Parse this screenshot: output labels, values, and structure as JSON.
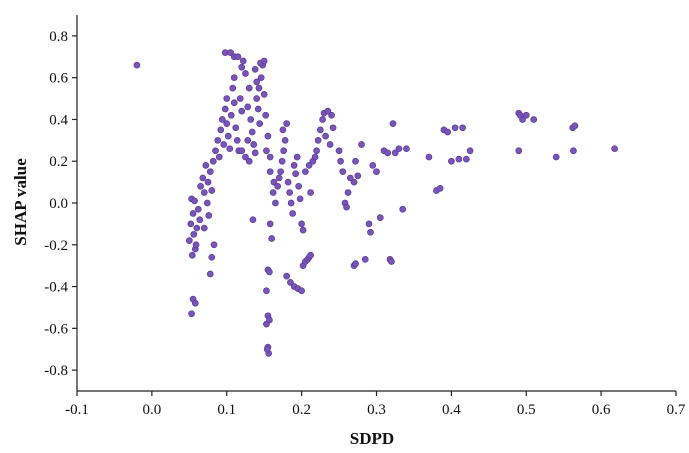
{
  "chart_data": {
    "type": "scatter",
    "title": "",
    "xlabel": "SDPD",
    "ylabel": "SHAP value",
    "xlim": [
      -0.1,
      0.7
    ],
    "ylim": [
      -0.9,
      0.9
    ],
    "grid": false,
    "legend": "none",
    "color": "#7a55b8",
    "xticks": [
      "-0.1",
      "0.0",
      "0.1",
      "0.2",
      "0.3",
      "0.4",
      "0.5",
      "0.6",
      "0.7"
    ],
    "yticks": [
      "0.8",
      "0.6",
      "0.4",
      "0.2",
      "0.0",
      "-0.2",
      "-0.4",
      "-0.6",
      "-0.8"
    ],
    "series": [
      {
        "name": "",
        "points": [
          [
            -0.02,
            0.66
          ],
          [
            0.053,
            0.02
          ],
          [
            0.055,
            -0.05
          ],
          [
            0.052,
            -0.1
          ],
          [
            0.056,
            -0.15
          ],
          [
            0.05,
            -0.18
          ],
          [
            0.058,
            -0.22
          ],
          [
            0.054,
            -0.25
          ],
          [
            0.06,
            -0.12
          ],
          [
            0.062,
            -0.03
          ],
          [
            0.057,
            0.01
          ],
          [
            0.064,
            -0.08
          ],
          [
            0.059,
            -0.2
          ],
          [
            0.055,
            -0.46
          ],
          [
            0.058,
            -0.48
          ],
          [
            0.053,
            -0.53
          ],
          [
            0.065,
            0.08
          ],
          [
            0.068,
            0.12
          ],
          [
            0.07,
            0.05
          ],
          [
            0.072,
            0.18
          ],
          [
            0.074,
            0.0
          ],
          [
            0.075,
            0.1
          ],
          [
            0.078,
            0.15
          ],
          [
            0.08,
            0.06
          ],
          [
            0.082,
            0.2
          ],
          [
            0.076,
            -0.06
          ],
          [
            0.085,
            0.25
          ],
          [
            0.07,
            -0.12
          ],
          [
            0.078,
            -0.34
          ],
          [
            0.08,
            -0.26
          ],
          [
            0.083,
            -0.2
          ],
          [
            0.088,
            0.3
          ],
          [
            0.09,
            0.22
          ],
          [
            0.092,
            0.35
          ],
          [
            0.094,
            0.4
          ],
          [
            0.096,
            0.28
          ],
          [
            0.098,
            0.45
          ],
          [
            0.1,
            0.5
          ],
          [
            0.1,
            0.38
          ],
          [
            0.102,
            0.32
          ],
          [
            0.104,
            0.26
          ],
          [
            0.106,
            0.42
          ],
          [
            0.108,
            0.55
          ],
          [
            0.11,
            0.6
          ],
          [
            0.11,
            0.48
          ],
          [
            0.112,
            0.36
          ],
          [
            0.114,
            0.3
          ],
          [
            0.116,
            0.25
          ],
          [
            0.118,
            0.5
          ],
          [
            0.12,
            0.65
          ],
          [
            0.12,
            0.44
          ],
          [
            0.098,
            0.72
          ],
          [
            0.105,
            0.72
          ],
          [
            0.11,
            0.7
          ],
          [
            0.115,
            0.7
          ],
          [
            0.122,
            0.68
          ],
          [
            0.125,
            0.62
          ],
          [
            0.13,
            0.55
          ],
          [
            0.128,
            0.46
          ],
          [
            0.132,
            0.4
          ],
          [
            0.134,
            0.34
          ],
          [
            0.136,
            0.28
          ],
          [
            0.138,
            0.24
          ],
          [
            0.14,
            0.5
          ],
          [
            0.142,
            0.45
          ],
          [
            0.144,
            0.38
          ],
          [
            0.146,
            0.6
          ],
          [
            0.148,
            0.66
          ],
          [
            0.15,
            0.52
          ],
          [
            0.152,
            0.42
          ],
          [
            0.155,
            0.32
          ],
          [
            0.153,
            0.25
          ],
          [
            0.158,
            0.22
          ],
          [
            0.12,
            0.25
          ],
          [
            0.125,
            0.22
          ],
          [
            0.128,
            0.3
          ],
          [
            0.13,
            0.2
          ],
          [
            0.135,
            -0.08
          ],
          [
            0.14,
            0.58
          ],
          [
            0.138,
            0.64
          ],
          [
            0.145,
            0.67
          ],
          [
            0.15,
            0.68
          ],
          [
            0.143,
            0.55
          ],
          [
            0.155,
            -0.32
          ],
          [
            0.157,
            -0.33
          ],
          [
            0.153,
            -0.42
          ],
          [
            0.155,
            -0.54
          ],
          [
            0.157,
            -0.56
          ],
          [
            0.153,
            -0.58
          ],
          [
            0.155,
            -0.69
          ],
          [
            0.156,
            -0.72
          ],
          [
            0.154,
            -0.7
          ],
          [
            0.158,
            -0.1
          ],
          [
            0.16,
            -0.17
          ],
          [
            0.162,
            0.05
          ],
          [
            0.165,
            0.0
          ],
          [
            0.158,
            0.15
          ],
          [
            0.163,
            0.1
          ],
          [
            0.168,
            0.08
          ],
          [
            0.17,
            0.12
          ],
          [
            0.172,
            0.15
          ],
          [
            0.174,
            0.2
          ],
          [
            0.176,
            0.25
          ],
          [
            0.178,
            0.3
          ],
          [
            0.175,
            0.35
          ],
          [
            0.18,
            0.38
          ],
          [
            0.182,
            0.1
          ],
          [
            0.184,
            0.05
          ],
          [
            0.186,
            0.0
          ],
          [
            0.188,
            -0.05
          ],
          [
            0.19,
            0.18
          ],
          [
            0.192,
            0.14
          ],
          [
            0.194,
            0.22
          ],
          [
            0.196,
            0.08
          ],
          [
            0.198,
            0.02
          ],
          [
            0.2,
            -0.1
          ],
          [
            0.202,
            -0.13
          ],
          [
            0.18,
            -0.35
          ],
          [
            0.185,
            -0.38
          ],
          [
            0.19,
            -0.4
          ],
          [
            0.195,
            -0.41
          ],
          [
            0.2,
            -0.42
          ],
          [
            0.202,
            -0.3
          ],
          [
            0.205,
            -0.28
          ],
          [
            0.208,
            -0.27
          ],
          [
            0.21,
            -0.26
          ],
          [
            0.212,
            -0.25
          ],
          [
            0.205,
            0.15
          ],
          [
            0.21,
            0.18
          ],
          [
            0.212,
            0.05
          ],
          [
            0.215,
            0.2
          ],
          [
            0.218,
            0.22
          ],
          [
            0.22,
            0.25
          ],
          [
            0.222,
            0.3
          ],
          [
            0.225,
            0.35
          ],
          [
            0.228,
            0.4
          ],
          [
            0.23,
            0.43
          ],
          [
            0.235,
            0.44
          ],
          [
            0.24,
            0.42
          ],
          [
            0.232,
            0.32
          ],
          [
            0.238,
            0.28
          ],
          [
            0.242,
            0.36
          ],
          [
            0.25,
            0.25
          ],
          [
            0.252,
            0.2
          ],
          [
            0.255,
            0.15
          ],
          [
            0.258,
            0.0
          ],
          [
            0.26,
            -0.02
          ],
          [
            0.262,
            0.05
          ],
          [
            0.265,
            0.12
          ],
          [
            0.27,
            0.1
          ],
          [
            0.272,
            0.2
          ],
          [
            0.275,
            0.13
          ],
          [
            0.27,
            -0.3
          ],
          [
            0.272,
            -0.29
          ],
          [
            0.28,
            0.28
          ],
          [
            0.285,
            -0.27
          ],
          [
            0.29,
            -0.1
          ],
          [
            0.292,
            -0.14
          ],
          [
            0.295,
            0.18
          ],
          [
            0.3,
            0.15
          ],
          [
            0.305,
            -0.07
          ],
          [
            0.31,
            0.25
          ],
          [
            0.315,
            0.24
          ],
          [
            0.318,
            -0.27
          ],
          [
            0.32,
            -0.28
          ],
          [
            0.322,
            0.38
          ],
          [
            0.325,
            0.24
          ],
          [
            0.33,
            0.26
          ],
          [
            0.335,
            -0.03
          ],
          [
            0.34,
            0.26
          ],
          [
            0.37,
            0.22
          ],
          [
            0.38,
            0.06
          ],
          [
            0.385,
            0.07
          ],
          [
            0.39,
            0.35
          ],
          [
            0.395,
            0.34
          ],
          [
            0.4,
            0.2
          ],
          [
            0.405,
            0.36
          ],
          [
            0.41,
            0.21
          ],
          [
            0.415,
            0.36
          ],
          [
            0.42,
            0.21
          ],
          [
            0.425,
            0.25
          ],
          [
            0.49,
            0.43
          ],
          [
            0.492,
            0.42
          ],
          [
            0.495,
            0.4
          ],
          [
            0.49,
            0.25
          ],
          [
            0.5,
            0.42
          ],
          [
            0.51,
            0.4
          ],
          [
            0.54,
            0.22
          ],
          [
            0.562,
            0.36
          ],
          [
            0.565,
            0.37
          ],
          [
            0.563,
            0.25
          ],
          [
            0.618,
            0.26
          ]
        ]
      }
    ]
  }
}
